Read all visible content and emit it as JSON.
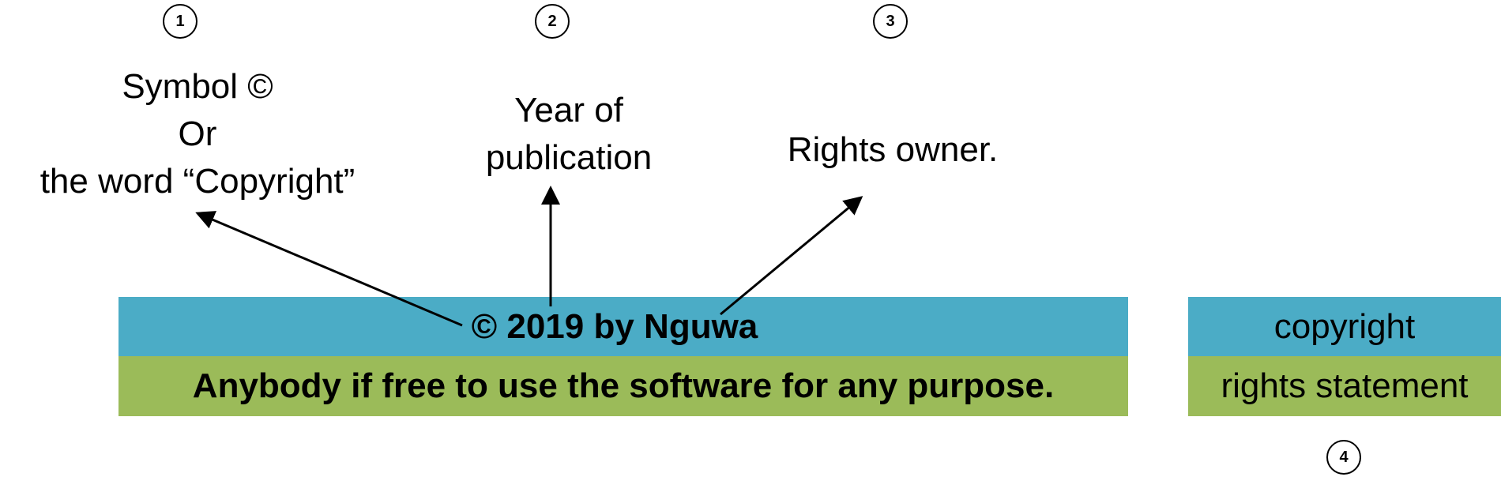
{
  "colors": {
    "blue_band": "#4BACC6",
    "green_band": "#9BBB59",
    "arrow": "#000000"
  },
  "markers": [
    "1",
    "2",
    "3",
    "4"
  ],
  "labels": {
    "symbol": [
      "Symbol ©",
      "Or",
      "the word “Copyright”"
    ],
    "year": [
      "Year of",
      "publication"
    ],
    "owner": "Rights owner."
  },
  "notice": {
    "copyright_line": "© 2019 by Nguwa",
    "rights_line": "Anybody if free to use the software for any purpose."
  },
  "legend": {
    "copyright": "copyright",
    "rights_statement": "rights statement"
  }
}
